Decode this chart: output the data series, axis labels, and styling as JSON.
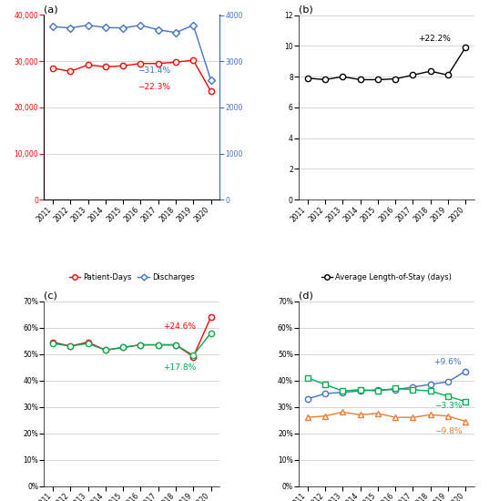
{
  "years": [
    2011,
    2012,
    2013,
    2014,
    2015,
    2016,
    2017,
    2018,
    2019,
    2020
  ],
  "patient_days": [
    28500,
    27800,
    29200,
    28800,
    29000,
    29500,
    29500,
    29800,
    30200,
    23500
  ],
  "discharges": [
    3750,
    3720,
    3780,
    3730,
    3720,
    3780,
    3680,
    3620,
    3780,
    2590
  ],
  "avg_los": [
    7.9,
    7.8,
    8.0,
    7.8,
    7.8,
    7.85,
    8.1,
    8.35,
    8.1,
    9.9
  ],
  "urgent": [
    0.545,
    0.53,
    0.545,
    0.515,
    0.525,
    0.535,
    0.535,
    0.535,
    0.49,
    0.64
  ],
  "medical": [
    0.54,
    0.53,
    0.54,
    0.515,
    0.525,
    0.535,
    0.535,
    0.535,
    0.495,
    0.58
  ],
  "age_65plus": [
    0.33,
    0.35,
    0.355,
    0.36,
    0.365,
    0.365,
    0.375,
    0.385,
    0.395,
    0.435
  ],
  "age_45_65": [
    0.26,
    0.265,
    0.28,
    0.27,
    0.275,
    0.26,
    0.26,
    0.27,
    0.265,
    0.245
  ],
  "age_lt45": [
    0.41,
    0.385,
    0.36,
    0.365,
    0.36,
    0.37,
    0.365,
    0.36,
    0.34,
    0.32
  ],
  "color_red": "#FF0000",
  "color_blue": "#4472C4",
  "color_black": "#000000",
  "color_green": "#00B050",
  "color_orange": "#ED7D31",
  "bg_color": "#FFFFFF",
  "grid_color": "#C8C8C8"
}
